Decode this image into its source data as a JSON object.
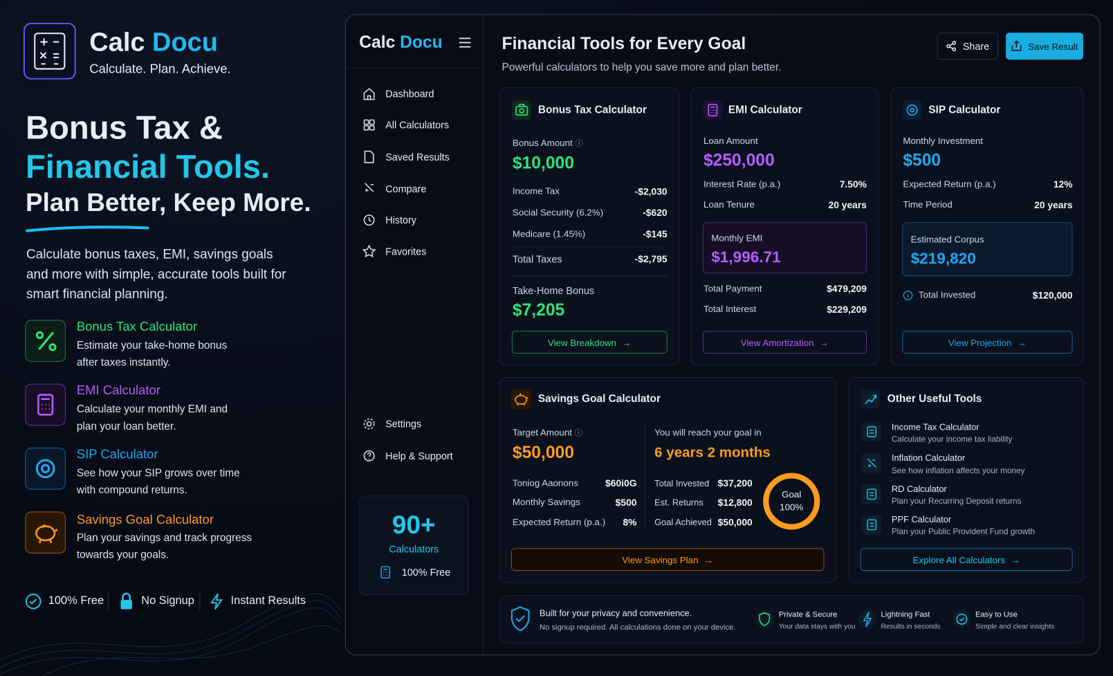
{
  "brand": {
    "name_1": "Calc",
    "name_2": "Docu",
    "tagline": "Calculate. Plan. Achieve."
  },
  "hero": {
    "line_1": "Bonus Tax &",
    "line_2": "Financial Tools.",
    "line_3": "Plan Better, Keep More.",
    "description": "Calculate bonus taxes, EMI, savings goals and more with simple, accurate tools built for smart financial planning."
  },
  "features": [
    {
      "title": "Bonus Tax Calculator",
      "description": "Estimate your take-home bonus after taxes instantly."
    },
    {
      "title": "EMI Calculator",
      "description": "Calculate your monthly EMI and plan your loan better."
    },
    {
      "title": "SIP Calculator",
      "description": "See how your SIP grows over time with compound returns."
    },
    {
      "title": "Savings Goal Calculator",
      "description": "Plan your savings and track progress towards your goals."
    }
  ],
  "badges": [
    "100% Free",
    "No Signup",
    "Instant Results"
  ],
  "app": {
    "brand": {
      "name_1": "Calc",
      "name_2": "Docu"
    },
    "nav": [
      "Dashboard",
      "All Calculators",
      "Saved Results",
      "Compare",
      "History",
      "Favorites"
    ],
    "nav_bottom": [
      "Settings",
      "Help & Support"
    ],
    "promo": {
      "count": "90+",
      "label": "Calculators",
      "note": "100% Free"
    },
    "header": {
      "title": "Financial Tools for Every Goal",
      "subtitle": "Powerful calculators to help you save more and plan better.",
      "share": "Share",
      "save": "Save Result"
    },
    "bonus_card": {
      "title": "Bonus Tax Calculator",
      "amount_label": "Bonus Amount",
      "amount": "$10,000",
      "rows": [
        {
          "label": "Income Tax",
          "value": "-$2,030"
        },
        {
          "label": "Social Security (6.2%)",
          "value": "-$620"
        },
        {
          "label": "Medicare (1.45%)",
          "value": "-$145"
        },
        {
          "label": "Total Taxes",
          "value": "-$2,795"
        }
      ],
      "result_label": "Take-Home Bonus",
      "result": "$7,205",
      "button": "View Breakdown"
    },
    "emi_card": {
      "title": "EMI Calculator",
      "amount_label": "Loan Amount",
      "amount": "$250,000",
      "rows": [
        {
          "label": "Interest Rate (p.a.)",
          "value": "7.50%"
        },
        {
          "label": "Loan Tenure",
          "value": "20 years"
        }
      ],
      "result_label": "Monthly EMI",
      "result": "$1,996.71",
      "totals": [
        {
          "label": "Total Payment",
          "value": "$479,209"
        },
        {
          "label": "Total Interest",
          "value": "$229,209"
        }
      ],
      "button": "View Amortization"
    },
    "sip_card": {
      "title": "SIP Calculator",
      "amount_label": "Monthly Investment",
      "amount": "$500",
      "rows": [
        {
          "label": "Expected Return (p.a.)",
          "value": "12%"
        },
        {
          "label": "Time Period",
          "value": "20 years"
        }
      ],
      "result_label": "Estimated Corpus",
      "result": "$219,820",
      "totals": [
        {
          "label": "Total Invested",
          "value": "$120,000"
        }
      ],
      "button": "View Projection"
    },
    "savings_card": {
      "title": "Savings Goal Calculator",
      "amount_label": "Target Amount",
      "amount": "$50,000",
      "rows": [
        {
          "label": "Toniog Aaonons",
          "value": "$60i0G"
        },
        {
          "label": "Monthly Savings",
          "value": "$500"
        },
        {
          "label": "Expected Return (p.a.)",
          "value": "8%"
        }
      ],
      "result_label": "You will reach your goal in",
      "result": "6 years 2 months",
      "result_rows": [
        {
          "label": "Total Invested",
          "value": "$37,200"
        },
        {
          "label": "Est. Returns",
          "value": "$12,800"
        },
        {
          "label": "Goal Achieved",
          "value": "$50,000"
        }
      ],
      "ring": {
        "label": "Goal",
        "value": "100%"
      },
      "button": "View Savings Plan"
    },
    "other_tools": {
      "title": "Other Useful Tools",
      "items": [
        {
          "title": "Income Tax Calculator",
          "description": "Calculate your income tax liability"
        },
        {
          "title": "Inflation Calculator",
          "description": "See how inflation affects your money"
        },
        {
          "title": "RD Calculator",
          "description": "Plan your Recurring Deposit returns"
        },
        {
          "title": "PPF Calculator",
          "description": "Plan your Public Provident Fund growth"
        }
      ],
      "button": "Explore All Calculators"
    },
    "footer": {
      "title": "Built for your privacy and convenience.",
      "subtitle": "No signup required. All calculations done on your device.",
      "items": [
        {
          "title": "Private & Secure",
          "description": "Your data stays with you"
        },
        {
          "title": "Lightning Fast",
          "description": "Results in seconds"
        },
        {
          "title": "Easy to Use",
          "description": "Simple and clear insights"
        }
      ]
    }
  }
}
